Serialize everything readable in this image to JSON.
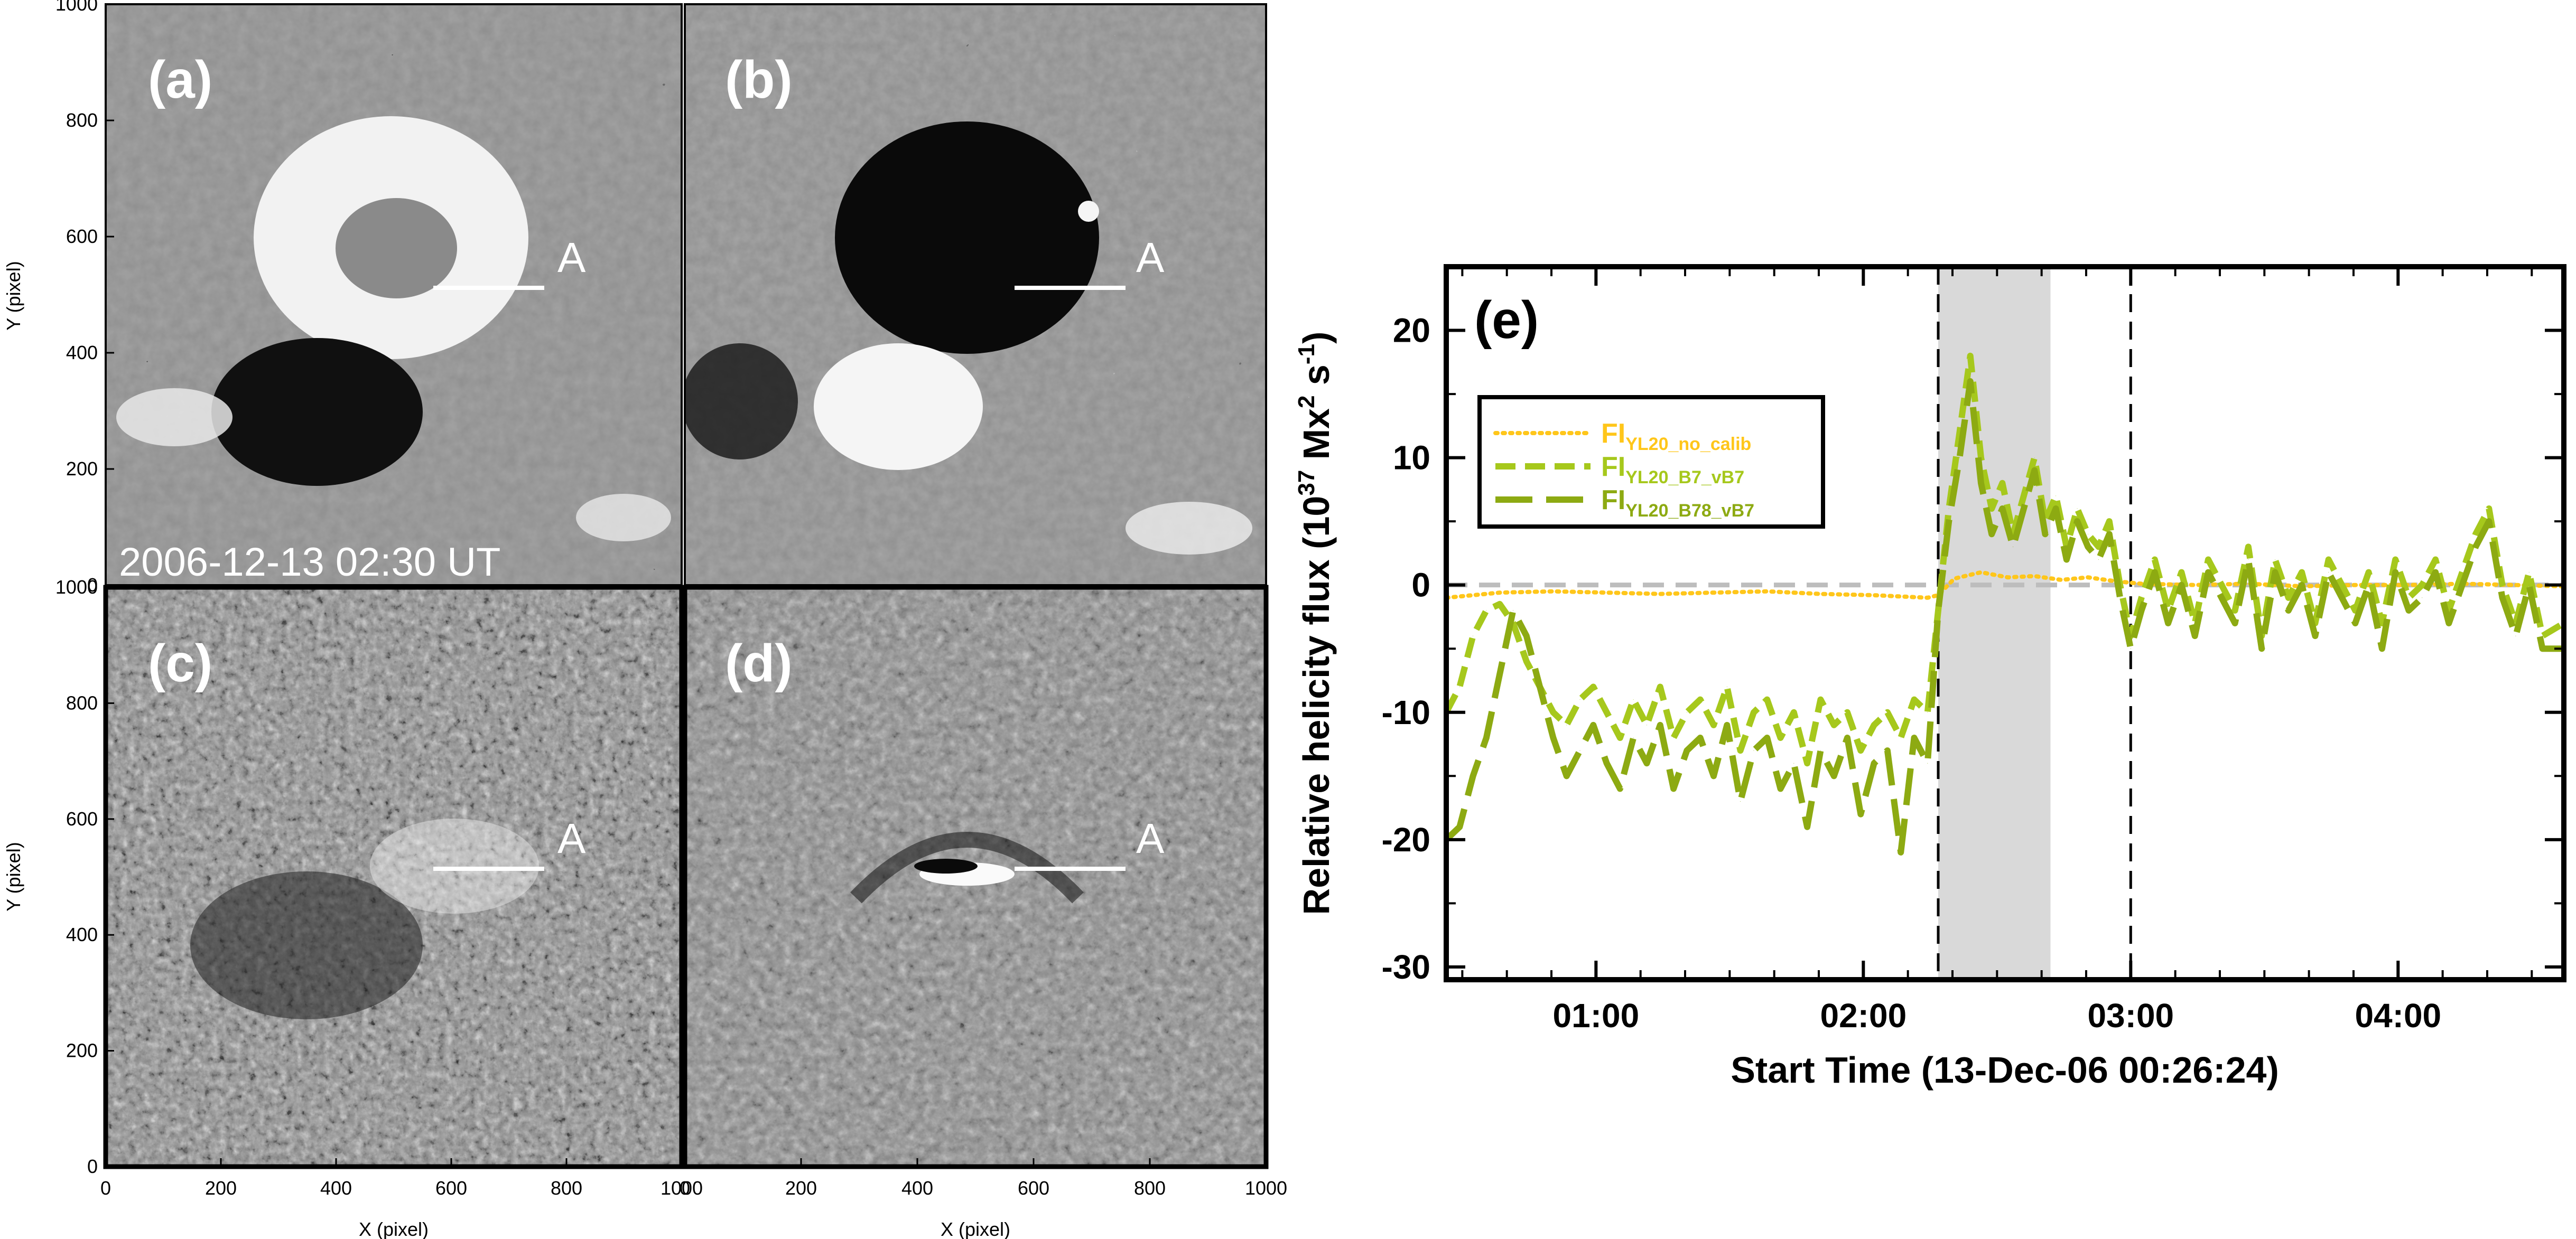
{
  "figure_title": "",
  "panels": {
    "a": {
      "label": "(a)",
      "marker": "A",
      "timestamp": "2006-12-13 02:30 UT"
    },
    "b": {
      "label": "(b)",
      "marker": "A"
    },
    "c": {
      "label": "(c)",
      "marker": "A"
    },
    "d": {
      "label": "(d)",
      "marker": "A"
    }
  },
  "image_axes": {
    "xlabel": "X (pixel)",
    "ylabel": "Y (pixel)",
    "xticks": [
      "0",
      "200",
      "400",
      "600",
      "800",
      "1000"
    ],
    "yticks": [
      "0",
      "200",
      "400",
      "600",
      "800",
      "1000"
    ]
  },
  "colors": {
    "gray_bg": "#8e8e8e",
    "no_calib": "#ffc61a",
    "b7": "#a6c81c",
    "b78": "#8daa12",
    "shade": "#d9d9d9",
    "zero_line": "#bdbdbd"
  },
  "chart_data": {
    "type": "line",
    "panel_label": "(e)",
    "xlabel": "Start Time (13-Dec-06 00:26:24)",
    "ylabel": "Relative helicity flux (10^37 Mx^2 s^-1)",
    "ylabel_parts": {
      "a": "Relative helicity flux (10",
      "b": "37",
      "c": " Mx",
      "d": "2",
      "e": " s",
      "f": "-1",
      "g": ")"
    },
    "x_unit": "hours since 00:26:24",
    "xlim": [
      0,
      4.18
    ],
    "ylim": [
      -31,
      25
    ],
    "x_ticks": [
      {
        "label": "01:00",
        "value": 0.56
      },
      {
        "label": "02:00",
        "value": 1.56
      },
      {
        "label": "03:00",
        "value": 2.56
      },
      {
        "label": "04:00",
        "value": 3.56
      }
    ],
    "y_ticks": [
      "-30",
      "-20",
      "-10",
      "0",
      "10",
      "20"
    ],
    "y_tick_values": [
      -30,
      -20,
      -10,
      0,
      10,
      20
    ],
    "vlines": [
      1.84,
      2.56
    ],
    "shaded_region": [
      1.84,
      2.26
    ],
    "zero_line": 0,
    "legend": [
      {
        "main": "FI",
        "sub": "YL20_no_calib",
        "color": "#ffc61a"
      },
      {
        "main": "FI",
        "sub": "YL20_B7_vB7",
        "color": "#a6c81c"
      },
      {
        "main": "FI",
        "sub": "YL20_B78_vB7",
        "color": "#8daa12"
      }
    ],
    "series": [
      {
        "name": "FI_YL20_no_calib",
        "x": [
          0.0,
          0.2,
          0.4,
          0.6,
          0.8,
          1.0,
          1.2,
          1.4,
          1.6,
          1.8,
          1.84,
          1.9,
          2.0,
          2.1,
          2.2,
          2.3,
          2.4,
          2.5,
          2.6,
          2.8,
          3.0,
          3.2,
          3.4,
          3.6,
          3.8,
          4.0,
          4.18
        ],
        "values": [
          -1.0,
          -0.6,
          -0.5,
          -0.6,
          -0.7,
          -0.6,
          -0.5,
          -0.7,
          -0.8,
          -1.0,
          -0.8,
          0.5,
          1.0,
          0.6,
          0.7,
          0.4,
          0.6,
          0.3,
          0.1,
          0.0,
          0.1,
          -0.1,
          0.0,
          0.0,
          0.1,
          0.0,
          -0.1
        ]
      },
      {
        "name": "FI_YL20_B7_vB7",
        "x": [
          0.0,
          0.05,
          0.1,
          0.15,
          0.2,
          0.25,
          0.3,
          0.35,
          0.4,
          0.45,
          0.5,
          0.55,
          0.6,
          0.65,
          0.7,
          0.75,
          0.8,
          0.85,
          0.9,
          0.95,
          1.0,
          1.05,
          1.1,
          1.15,
          1.2,
          1.25,
          1.3,
          1.35,
          1.4,
          1.45,
          1.5,
          1.55,
          1.6,
          1.65,
          1.7,
          1.75,
          1.8,
          1.84,
          1.88,
          1.92,
          1.96,
          2.0,
          2.04,
          2.08,
          2.12,
          2.16,
          2.2,
          2.24,
          2.28,
          2.32,
          2.36,
          2.4,
          2.44,
          2.48,
          2.52,
          2.56,
          2.6,
          2.65,
          2.7,
          2.75,
          2.8,
          2.85,
          2.9,
          2.95,
          3.0,
          3.05,
          3.1,
          3.15,
          3.2,
          3.25,
          3.3,
          3.35,
          3.4,
          3.45,
          3.5,
          3.55,
          3.6,
          3.65,
          3.7,
          3.75,
          3.8,
          3.85,
          3.9,
          3.95,
          4.0,
          4.05,
          4.1,
          4.18
        ],
        "values": [
          -10,
          -8,
          -4,
          -2,
          -1.5,
          -3,
          -6,
          -8,
          -10,
          -11,
          -9,
          -8,
          -10,
          -12,
          -9,
          -11,
          -8,
          -12,
          -10,
          -9,
          -11,
          -8,
          -13,
          -10,
          -9,
          -12,
          -10,
          -14,
          -9,
          -11,
          -10,
          -13,
          -11,
          -10,
          -12,
          -9,
          -10,
          -2,
          6,
          12,
          18,
          10,
          6,
          8,
          4,
          7,
          10,
          5,
          7,
          3,
          6,
          4,
          3,
          5,
          0,
          -4,
          -1,
          2,
          -2,
          1,
          -3,
          2,
          0,
          -2,
          3,
          -4,
          2,
          -1,
          1,
          -3,
          2,
          0,
          -2,
          1,
          -3,
          2,
          -1,
          0,
          2,
          -2,
          1,
          4,
          6,
          0,
          -3,
          1,
          -4,
          -3
        ]
      },
      {
        "name": "FI_YL20_B78_vB7",
        "x": [
          0.0,
          0.05,
          0.1,
          0.15,
          0.2,
          0.25,
          0.3,
          0.35,
          0.4,
          0.45,
          0.5,
          0.55,
          0.6,
          0.65,
          0.7,
          0.75,
          0.8,
          0.85,
          0.9,
          0.95,
          1.0,
          1.05,
          1.1,
          1.15,
          1.2,
          1.25,
          1.3,
          1.35,
          1.4,
          1.45,
          1.5,
          1.55,
          1.6,
          1.65,
          1.7,
          1.75,
          1.8,
          1.84,
          1.88,
          1.92,
          1.96,
          2.0,
          2.04,
          2.08,
          2.12,
          2.16,
          2.2,
          2.24,
          2.28,
          2.32,
          2.36,
          2.4,
          2.44,
          2.48,
          2.52,
          2.56,
          2.6,
          2.65,
          2.7,
          2.75,
          2.8,
          2.85,
          2.9,
          2.95,
          3.0,
          3.05,
          3.1,
          3.15,
          3.2,
          3.25,
          3.3,
          3.35,
          3.4,
          3.45,
          3.5,
          3.55,
          3.6,
          3.65,
          3.7,
          3.75,
          3.8,
          3.85,
          3.9,
          3.95,
          4.0,
          4.05,
          4.1,
          4.18
        ],
        "values": [
          -20,
          -19,
          -15,
          -12,
          -7,
          -2,
          -4,
          -8,
          -12,
          -15,
          -13,
          -11,
          -14,
          -16,
          -12,
          -14,
          -11,
          -16,
          -13,
          -12,
          -15,
          -11,
          -17,
          -13,
          -12,
          -16,
          -14,
          -19,
          -13,
          -15,
          -12,
          -18,
          -14,
          -13,
          -21,
          -12,
          -14,
          -2,
          5,
          10,
          16,
          8,
          4,
          6,
          3,
          6,
          9,
          4,
          6,
          2,
          5,
          3,
          2,
          4,
          -1,
          -5,
          -2,
          1,
          -3,
          0,
          -4,
          1,
          -1,
          -3,
          2,
          -5,
          1,
          -2,
          0,
          -4,
          1,
          -1,
          -3,
          0,
          -5,
          1,
          -2,
          -1,
          1,
          -3,
          0,
          3,
          5,
          -1,
          -4,
          0,
          -5,
          -5
        ]
      }
    ]
  }
}
